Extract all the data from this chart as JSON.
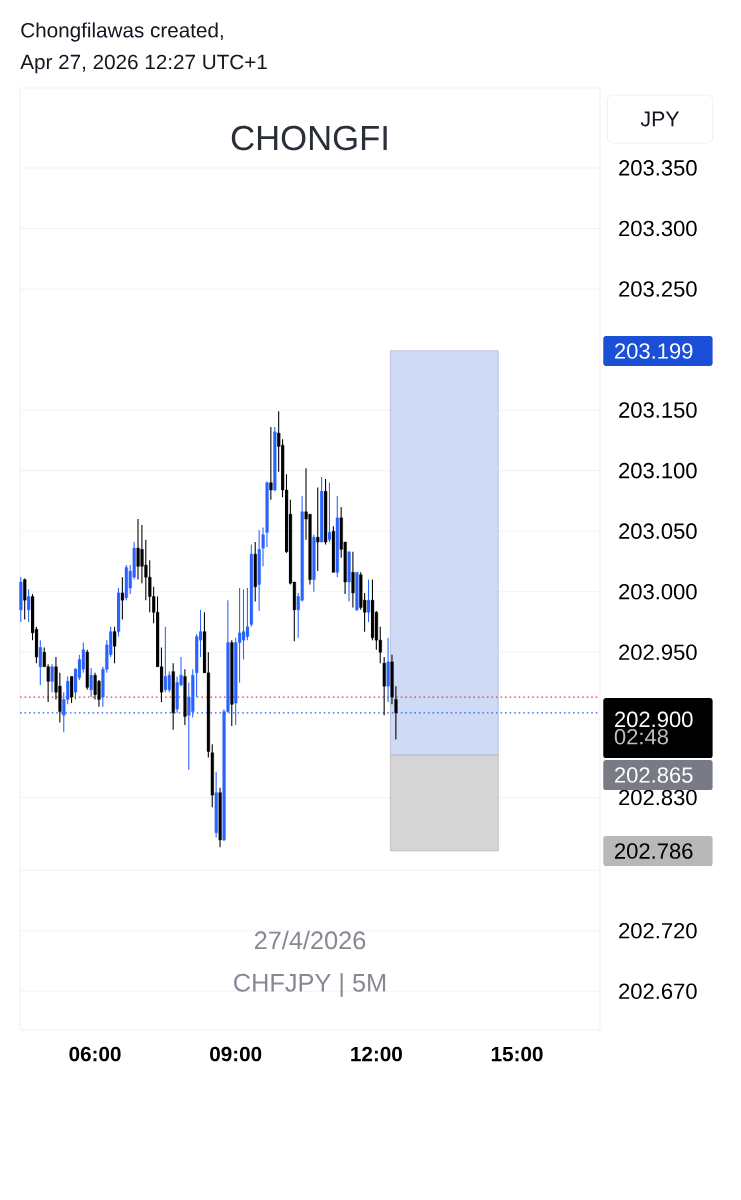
{
  "chart_data": {
    "type": "candlestick",
    "title": "CHONGFI",
    "ylabel": "JPY",
    "annotations": [
      "Chongfilawas created,",
      "Apr 27, 2026 12:27 UTC+1",
      "27/4/2026",
      "CHFJPY | 5M",
      "02:48",
      "203.199",
      "202.865",
      "202.786"
    ],
    "colors": [
      "#2962ff",
      "#000000",
      "#2962ff",
      "#000000",
      "#000000",
      "#2962ff",
      "#000000",
      "#000000",
      "#2962ff",
      "#000000",
      "#000000",
      "#2962ff",
      "#2962ff",
      "#000000",
      "#2962ff",
      "#2962ff",
      "#2962ff",
      "#000000",
      "#2962ff",
      "#000000",
      "#000000",
      "#2962ff",
      "#2962ff",
      "#2962ff",
      "#000000",
      "#2962ff",
      "#000000",
      "#2962ff",
      "#2962ff",
      "#2962ff",
      "#000000",
      "#000000",
      "#000000",
      "#000000",
      "#000000",
      "#000000",
      "#000000",
      "#2962ff",
      "#2962ff",
      "#000000",
      "#2962ff",
      "#2962ff",
      "#000000",
      "#2962ff",
      "#2962ff",
      "#2962ff",
      "#2962ff",
      "#000000",
      "#000000",
      "#000000",
      "#2962ff",
      "#000000",
      "#2962ff",
      "#2962ff",
      "#000000",
      "#2962ff",
      "#2962ff",
      "#2962ff",
      "#2962ff",
      "#2962ff",
      "#000000",
      "#2962ff",
      "#2962ff",
      "#2962ff",
      "#000000",
      "#2962ff",
      "#000000",
      "#000000",
      "#000000",
      "#000000",
      "#000000",
      "#2962ff",
      "#2962ff",
      "#000000",
      "#000000",
      "#2962ff",
      "#000000",
      "#2962ff",
      "#000000",
      "#2962ff",
      "#000000",
      "#2962ff",
      "#000000",
      "#000000",
      "#2962ff",
      "#000000",
      "#2962ff",
      "#000000",
      "#000000",
      "#2962ff",
      "#000000",
      "#000000",
      "#000000",
      "#000000",
      "#2962ff",
      "#000000",
      "#000000"
    ],
    "xlim": [
      4.4,
      16.77
    ],
    "ylim": [
      202.638,
      203.416
    ],
    "xticks": [
      {
        "value": 6,
        "label": "06:00"
      },
      {
        "value": 9,
        "label": "09:00"
      },
      {
        "value": 12,
        "label": "12:00"
      },
      {
        "value": 15,
        "label": "15:00"
      }
    ],
    "yticks": [
      {
        "value": 203.35,
        "label": "203.350"
      },
      {
        "value": 203.3,
        "label": "203.300"
      },
      {
        "value": 203.25,
        "label": "203.250"
      },
      {
        "value": 203.15,
        "label": "203.150"
      },
      {
        "value": 203.1,
        "label": "203.100"
      },
      {
        "value": 203.05,
        "label": "203.050"
      },
      {
        "value": 203.0,
        "label": "203.000"
      },
      {
        "value": 202.95,
        "label": "202.950"
      },
      {
        "value": 202.83,
        "label": "202.830"
      },
      {
        "value": 202.77,
        "label": null
      },
      {
        "value": 202.72,
        "label": "202.720"
      },
      {
        "value": 202.67,
        "label": "202.670"
      }
    ],
    "grid": "y",
    "ref_lines": [
      {
        "axis": "y",
        "value": 202.913,
        "color": "#f23645",
        "line_style": "dotted"
      },
      {
        "axis": "y",
        "value": 202.9,
        "label": "202.900",
        "color": "#2962ff",
        "line_style": "dotted"
      }
    ],
    "series": [
      {
        "type": "bar",
        "x": [
          13.45
        ],
        "base": [
          202.865
        ],
        "values": [
          0.334
        ],
        "color": "#cfdaf5"
      },
      {
        "type": "bar",
        "x": [
          13.45
        ],
        "base": [
          202.786
        ],
        "values": [
          0.079
        ],
        "color": "#d6d6d6"
      }
    ],
    "x": [
      4.4167,
      4.5,
      4.5833,
      4.6667,
      4.75,
      4.8333,
      4.9167,
      5,
      5.0833,
      5.1667,
      5.25,
      5.3333,
      5.4167,
      5.5,
      5.5833,
      5.6667,
      5.75,
      5.8333,
      5.9167,
      6,
      6.0833,
      6.1667,
      6.25,
      6.3333,
      6.4167,
      6.5,
      6.5833,
      6.6667,
      6.75,
      6.8333,
      6.9167,
      7,
      7.0833,
      7.1667,
      7.25,
      7.3333,
      7.4167,
      7.5,
      7.5833,
      7.6667,
      7.75,
      7.8333,
      7.9167,
      8,
      8.0833,
      8.1667,
      8.25,
      8.3333,
      8.4167,
      8.5,
      8.5833,
      8.6667,
      8.75,
      8.8333,
      8.9167,
      9,
      9.0833,
      9.1667,
      9.25,
      9.3333,
      9.4167,
      9.5,
      9.5833,
      9.6667,
      9.75,
      9.8333,
      9.9167,
      10,
      10.0833,
      10.1667,
      10.25,
      10.3333,
      10.4167,
      10.5,
      10.5833,
      10.6667,
      10.75,
      10.8333,
      10.9167,
      11,
      11.0833,
      11.1667,
      11.25,
      11.3333,
      11.4167,
      11.5,
      11.5833,
      11.6667,
      11.75,
      11.8333,
      11.9167,
      12,
      12.0833,
      12.1667,
      12.25,
      12.3333,
      12.4167
    ],
    "ohlc": [
      [
        202.985,
        203.012,
        202.975,
        203.008
      ],
      [
        203.01,
        203.011,
        202.977,
        202.993
      ],
      [
        202.985,
        203.002,
        202.975,
        202.996
      ],
      [
        202.996,
        202.998,
        202.96,
        202.966
      ],
      [
        202.969,
        202.971,
        202.941,
        202.946
      ],
      [
        202.938,
        202.96,
        202.923,
        202.954
      ],
      [
        202.95,
        202.954,
        202.938,
        202.938
      ],
      [
        202.938,
        202.94,
        202.909,
        202.926
      ],
      [
        202.926,
        202.94,
        202.917,
        202.938
      ],
      [
        202.938,
        202.946,
        202.911,
        202.917
      ],
      [
        202.922,
        202.933,
        202.892,
        202.901
      ],
      [
        202.898,
        202.917,
        202.884,
        202.911
      ],
      [
        202.911,
        202.93,
        202.907,
        202.926
      ],
      [
        202.93,
        202.93,
        202.908,
        202.913
      ],
      [
        202.917,
        202.937,
        202.911,
        202.936
      ],
      [
        202.929,
        202.948,
        202.927,
        202.944
      ],
      [
        202.936,
        202.958,
        202.933,
        202.952
      ],
      [
        202.95,
        202.952,
        202.919,
        202.921
      ],
      [
        202.919,
        202.937,
        202.913,
        202.931
      ],
      [
        202.931,
        202.933,
        202.911,
        202.915
      ],
      [
        202.926,
        202.927,
        202.905,
        202.911
      ],
      [
        202.913,
        202.938,
        202.905,
        202.936
      ],
      [
        202.936,
        202.96,
        202.933,
        202.956
      ],
      [
        202.948,
        202.971,
        202.946,
        202.967
      ],
      [
        202.967,
        202.971,
        202.941,
        202.955
      ],
      [
        202.967,
        203.003,
        202.963,
        202.999
      ],
      [
        202.999,
        203.012,
        202.977,
        202.993
      ],
      [
        202.995,
        203.022,
        202.993,
        203.02
      ],
      [
        203.003,
        203.022,
        202.998,
        203.017
      ],
      [
        203.012,
        203.041,
        203.01,
        203.036
      ],
      [
        203.036,
        203.06,
        203.01,
        203.021
      ],
      [
        203.035,
        203.055,
        203.007,
        203.021
      ],
      [
        203.022,
        203.043,
        202.993,
        203.012
      ],
      [
        203.012,
        203.026,
        202.983,
        202.996
      ],
      [
        202.996,
        203.004,
        202.974,
        202.983
      ],
      [
        202.983,
        202.996,
        202.938,
        202.938
      ],
      [
        202.938,
        202.954,
        202.909,
        202.917
      ],
      [
        202.919,
        202.971,
        202.917,
        202.93
      ],
      [
        202.919,
        202.934,
        202.917,
        202.931
      ],
      [
        202.934,
        202.941,
        202.886,
        202.9
      ],
      [
        202.903,
        202.93,
        202.9,
        202.925
      ],
      [
        202.923,
        202.946,
        202.922,
        202.931
      ],
      [
        202.93,
        202.936,
        202.89,
        202.897
      ],
      [
        202.898,
        202.925,
        202.853,
        202.913
      ],
      [
        202.901,
        202.936,
        202.896,
        202.931
      ],
      [
        202.933,
        202.965,
        202.913,
        202.963
      ],
      [
        202.96,
        202.985,
        202.946,
        202.967
      ],
      [
        202.967,
        202.983,
        202.933,
        202.933
      ],
      [
        202.933,
        202.95,
        202.863,
        202.868
      ],
      [
        202.867,
        202.874,
        202.822,
        202.832
      ],
      [
        202.801,
        202.851,
        202.797,
        202.834
      ],
      [
        202.834,
        202.838,
        202.789,
        202.795
      ],
      [
        202.795,
        202.903,
        202.794,
        202.901
      ],
      [
        202.901,
        202.993,
        202.9,
        202.958
      ],
      [
        202.958,
        202.96,
        202.889,
        202.907
      ],
      [
        202.908,
        202.962,
        202.89,
        202.958
      ],
      [
        202.958,
        203.003,
        202.925,
        202.966
      ],
      [
        202.96,
        203.002,
        202.944,
        202.967
      ],
      [
        202.963,
        203.003,
        202.96,
        202.971
      ],
      [
        202.973,
        203.039,
        202.971,
        203.031
      ],
      [
        203.031,
        203.041,
        202.992,
        203.004
      ],
      [
        203.006,
        203.051,
        202.984,
        203.035
      ],
      [
        203.036,
        203.053,
        203.021,
        203.047
      ],
      [
        203.049,
        203.091,
        203.037,
        203.09
      ],
      [
        203.09,
        203.136,
        203.076,
        203.084
      ],
      [
        203.084,
        203.136,
        203.083,
        203.132
      ],
      [
        203.131,
        203.149,
        203.099,
        203.12
      ],
      [
        203.121,
        203.126,
        203.078,
        203.084
      ],
      [
        203.084,
        203.097,
        203.032,
        203.033
      ],
      [
        203.064,
        203.076,
        203.006,
        203.007
      ],
      [
        203.008,
        203.008,
        202.959,
        202.985
      ],
      [
        202.985,
        202.999,
        202.962,
        202.996
      ],
      [
        202.993,
        203.079,
        202.992,
        203.066
      ],
      [
        203.066,
        203.102,
        203.043,
        203.06
      ],
      [
        203.064,
        203.064,
        203.006,
        203.01
      ],
      [
        203.01,
        203.047,
        203.0,
        203.045
      ],
      [
        203.045,
        203.086,
        203.017,
        203.041
      ],
      [
        203.041,
        203.095,
        203.041,
        203.083
      ],
      [
        203.083,
        203.093,
        203.039,
        203.041
      ],
      [
        203.043,
        203.09,
        203.041,
        203.049
      ],
      [
        203.05,
        203.054,
        203.016,
        203.016
      ],
      [
        203.016,
        203.079,
        203.012,
        203.061
      ],
      [
        203.061,
        203.07,
        203.028,
        203.035
      ],
      [
        203.041,
        203.041,
        202.998,
        203.008
      ],
      [
        203.008,
        203.033,
        202.992,
        203.033
      ],
      [
        203.016,
        203.033,
        202.987,
        202.999
      ],
      [
        202.985,
        203.016,
        202.984,
        203.016
      ],
      [
        203.014,
        203.016,
        202.985,
        202.987
      ],
      [
        202.993,
        202.999,
        202.967,
        202.983
      ],
      [
        202.983,
        203.01,
        202.975,
        202.993
      ],
      [
        202.993,
        203.01,
        202.96,
        202.962
      ],
      [
        202.983,
        202.984,
        202.952,
        202.96
      ],
      [
        202.96,
        202.971,
        202.941,
        202.95
      ],
      [
        202.941,
        202.946,
        202.898,
        202.922
      ],
      [
        202.922,
        202.962,
        202.909,
        202.942
      ],
      [
        202.942,
        202.948,
        202.907,
        202.913
      ],
      [
        202.911,
        202.922,
        202.878,
        202.9
      ]
    ]
  }
}
